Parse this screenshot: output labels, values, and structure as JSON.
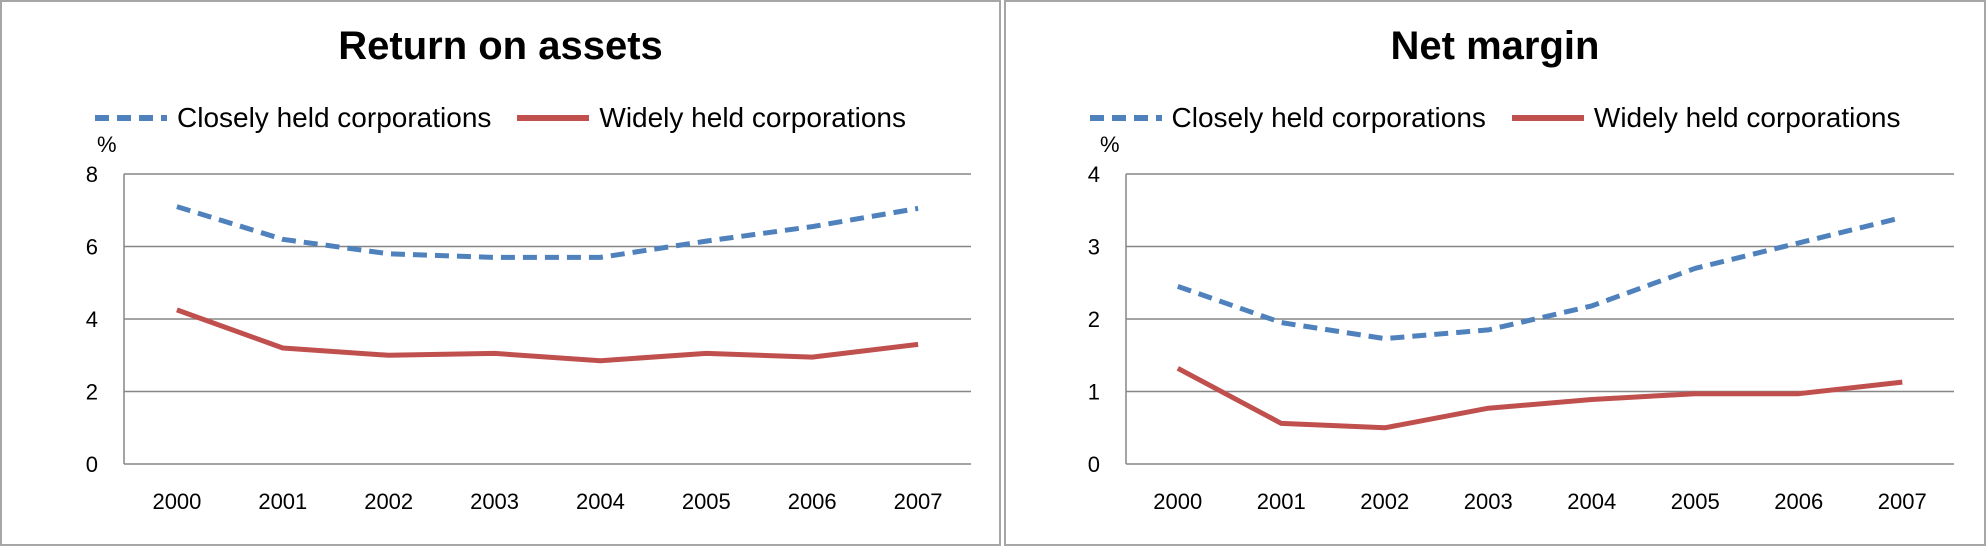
{
  "chart_data": [
    {
      "type": "line",
      "title": "Return on assets",
      "ylabel": "%",
      "categories": [
        "2000",
        "2001",
        "2002",
        "2003",
        "2004",
        "2005",
        "2006",
        "2007"
      ],
      "ylim": [
        0,
        8
      ],
      "yticks": [
        "0",
        "2",
        "4",
        "6",
        "8"
      ],
      "grid": true,
      "legend": "top",
      "series": [
        {
          "name": "Closely held corporations",
          "color": "#4f81bd",
          "style": "dashed",
          "values": [
            7.1,
            6.2,
            5.8,
            5.7,
            5.7,
            6.15,
            6.55,
            7.05
          ]
        },
        {
          "name": "Widely held corporations",
          "color": "#c0504d",
          "style": "solid",
          "values": [
            4.25,
            3.2,
            3.0,
            3.05,
            2.85,
            3.05,
            2.95,
            3.3
          ]
        }
      ]
    },
    {
      "type": "line",
      "title": "Net margin",
      "ylabel": "%",
      "categories": [
        "2000",
        "2001",
        "2002",
        "2003",
        "2004",
        "2005",
        "2006",
        "2007"
      ],
      "ylim": [
        0,
        4
      ],
      "yticks": [
        "0",
        "1",
        "2",
        "3",
        "4"
      ],
      "grid": true,
      "legend": "top",
      "series": [
        {
          "name": "Closely held corporations",
          "color": "#4f81bd",
          "style": "dashed",
          "values": [
            2.45,
            1.95,
            1.73,
            1.85,
            2.18,
            2.7,
            3.05,
            3.4
          ]
        },
        {
          "name": "Widely held corporations",
          "color": "#c0504d",
          "style": "solid",
          "values": [
            1.32,
            0.56,
            0.5,
            0.77,
            0.89,
            0.97,
            0.97,
            1.13
          ]
        }
      ]
    }
  ]
}
